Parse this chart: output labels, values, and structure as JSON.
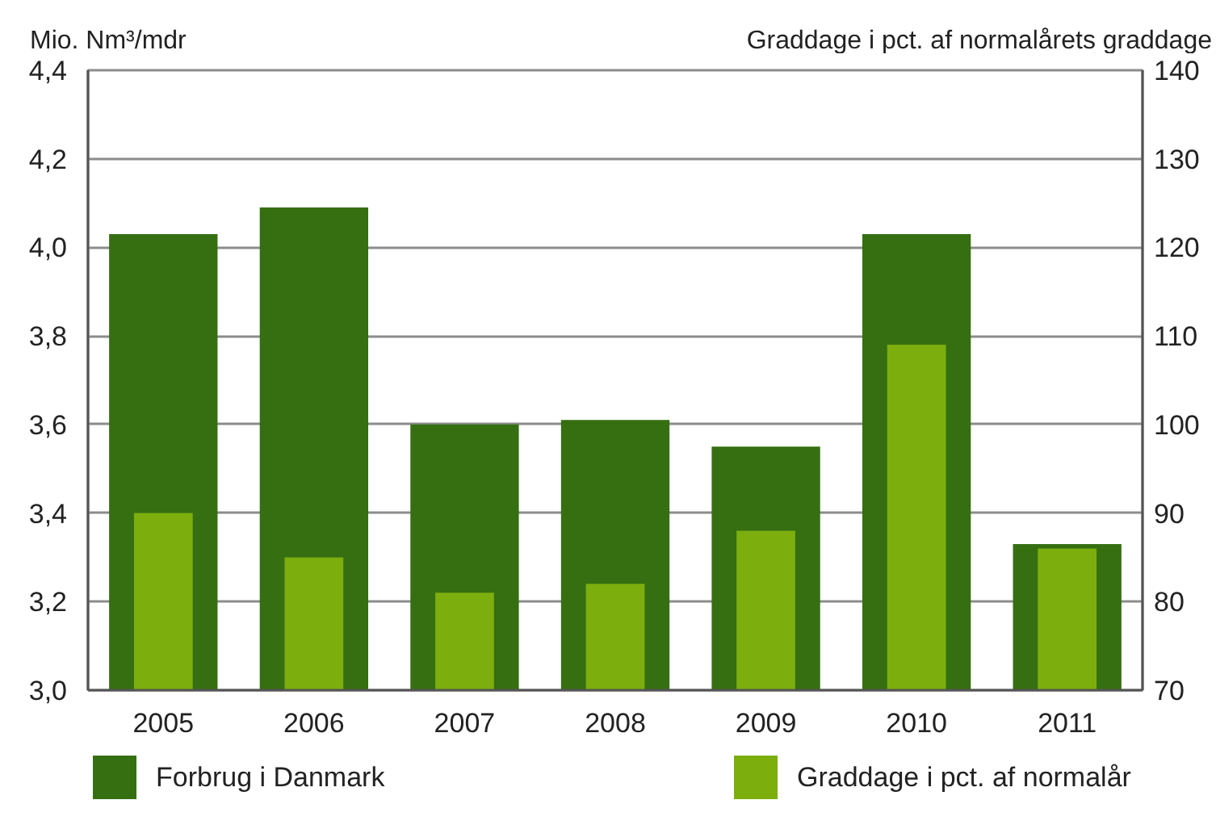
{
  "chart_data": {
    "type": "bar",
    "ylabel": "Mio. Nm³/mdr",
    "y2label": "Graddage i pct. af normalårets graddage",
    "categories": [
      "2005",
      "2006",
      "2007",
      "2008",
      "2009",
      "2010",
      "2011"
    ],
    "series": [
      {
        "name": "Forbrug i Danmark",
        "color": "#356f12",
        "values": [
          4.03,
          4.09,
          3.6,
          3.61,
          3.55,
          4.03,
          3.33
        ]
      },
      {
        "name": "Graddage i pct. af normalår",
        "color": "#7cae0e",
        "values": [
          90,
          85,
          81,
          82,
          88,
          109,
          86
        ],
        "axis": "y2"
      }
    ],
    "ylim": [
      3.0,
      4.4
    ],
    "yticks": [
      {
        "value": 3.0,
        "label": "3,0"
      },
      {
        "value": 3.2,
        "label": "3,2"
      },
      {
        "value": 3.4,
        "label": "3,4"
      },
      {
        "value": 3.6,
        "label": "3,6"
      },
      {
        "value": 3.8,
        "label": "3,8"
      },
      {
        "value": 4.0,
        "label": "4,0"
      },
      {
        "value": 4.2,
        "label": "4,2"
      },
      {
        "value": 4.4,
        "label": "4,4"
      }
    ],
    "y2lim": [
      70,
      140
    ],
    "y2ticks": [
      70,
      80,
      90,
      100,
      110,
      120,
      130,
      140
    ],
    "grid": "y",
    "legend": "bottom"
  }
}
